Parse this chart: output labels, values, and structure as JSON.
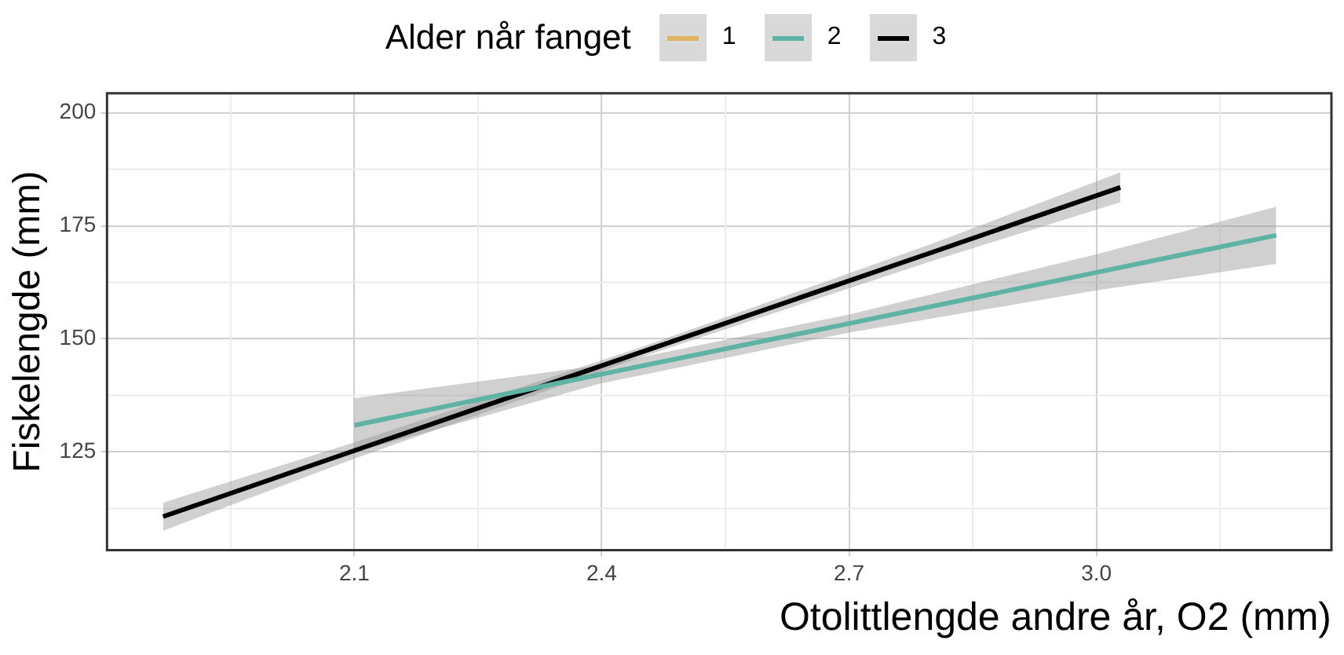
{
  "chart_data": {
    "type": "line",
    "xlabel": "Otolittlengde andre år, O2 (mm)",
    "ylabel": "Fiskelengde (mm)",
    "legend_title": "Alder når fanget",
    "legend": "top",
    "grid": true,
    "marker": "none",
    "line_style": "solid",
    "xlim": [
      1.8,
      3.285
    ],
    "xticks": [
      2.1,
      2.4,
      2.7,
      {
        "value": 3,
        "label": "3.0"
      }
    ],
    "ylim": [
      103.3,
      204.3
    ],
    "yticks": [
      125,
      150,
      175,
      200
    ],
    "series": [
      {
        "name": "1",
        "color": "#e0b460"
      },
      {
        "name": "2",
        "color": "#5fb3a5",
        "x": [
          2.1,
          2.4,
          2.7,
          3.0,
          3.218
        ],
        "values": [
          130.9,
          142.2,
          153.4,
          164.7,
          172.9
        ],
        "lower": [
          124.9,
          140.2,
          151.4,
          160.7,
          166.6
        ],
        "upper": [
          136.9,
          144.2,
          155.4,
          168.7,
          179.2
        ]
      },
      {
        "name": "3",
        "color": "#000000",
        "x": [
          1.868,
          2.1,
          2.45,
          2.8,
          3.029
        ],
        "values": [
          110.7,
          125.3,
          147.2,
          169.1,
          183.5
        ],
        "lower": [
          107.6,
          123.5,
          146.1,
          167.2,
          180.2
        ],
        "upper": [
          113.8,
          127.1,
          148.3,
          171.0,
          186.8
        ]
      }
    ]
  }
}
